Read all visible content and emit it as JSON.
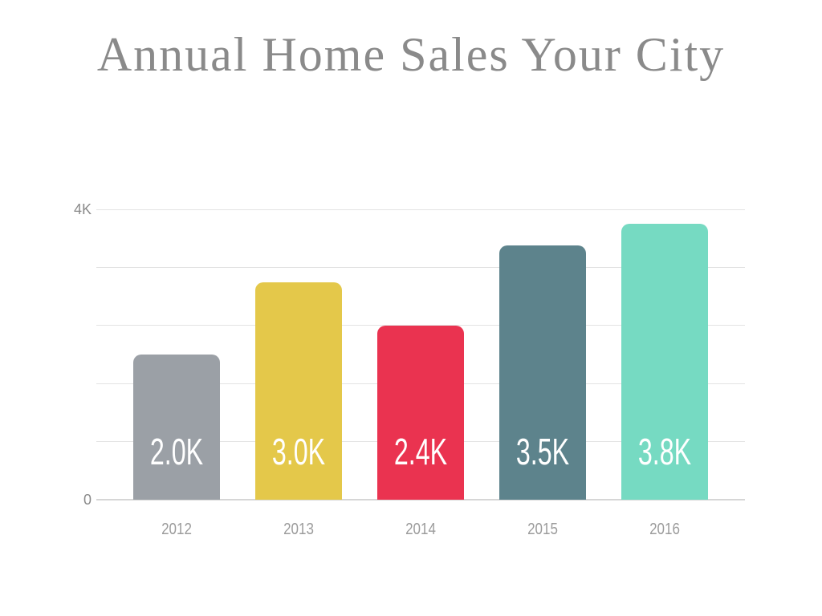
{
  "chart_data": {
    "type": "bar",
    "title": "Annual Home Sales Your City",
    "categories": [
      "2012",
      "2013",
      "2014",
      "2015",
      "2016"
    ],
    "values": [
      2000,
      3000,
      2400,
      3500,
      3800
    ],
    "value_labels": [
      "2.0K",
      "3.0K",
      "2.4K",
      "3.5K",
      "3.8K"
    ],
    "bar_colors": [
      "#9ba0a6",
      "#e4c84a",
      "#ea3350",
      "#5d838c",
      "#76dac2"
    ],
    "value_label_color": "#ffffff",
    "xlabel": "",
    "ylabel": "",
    "ylim": [
      0,
      4000
    ],
    "gridline_interval": 800,
    "ytick_labels_shown": [
      {
        "value": 4000,
        "label": "4K"
      },
      {
        "value": 0,
        "label": "0"
      }
    ],
    "grid": "horizontal",
    "gridline_color": "#e3e3e3",
    "baseline_color": "#d6d6d6",
    "axis_tick_color": "#8a8a8a",
    "category_label_color": "#9b9b9b",
    "title_color": "#8a8a8a",
    "legend": "none",
    "background": "#ffffff"
  }
}
